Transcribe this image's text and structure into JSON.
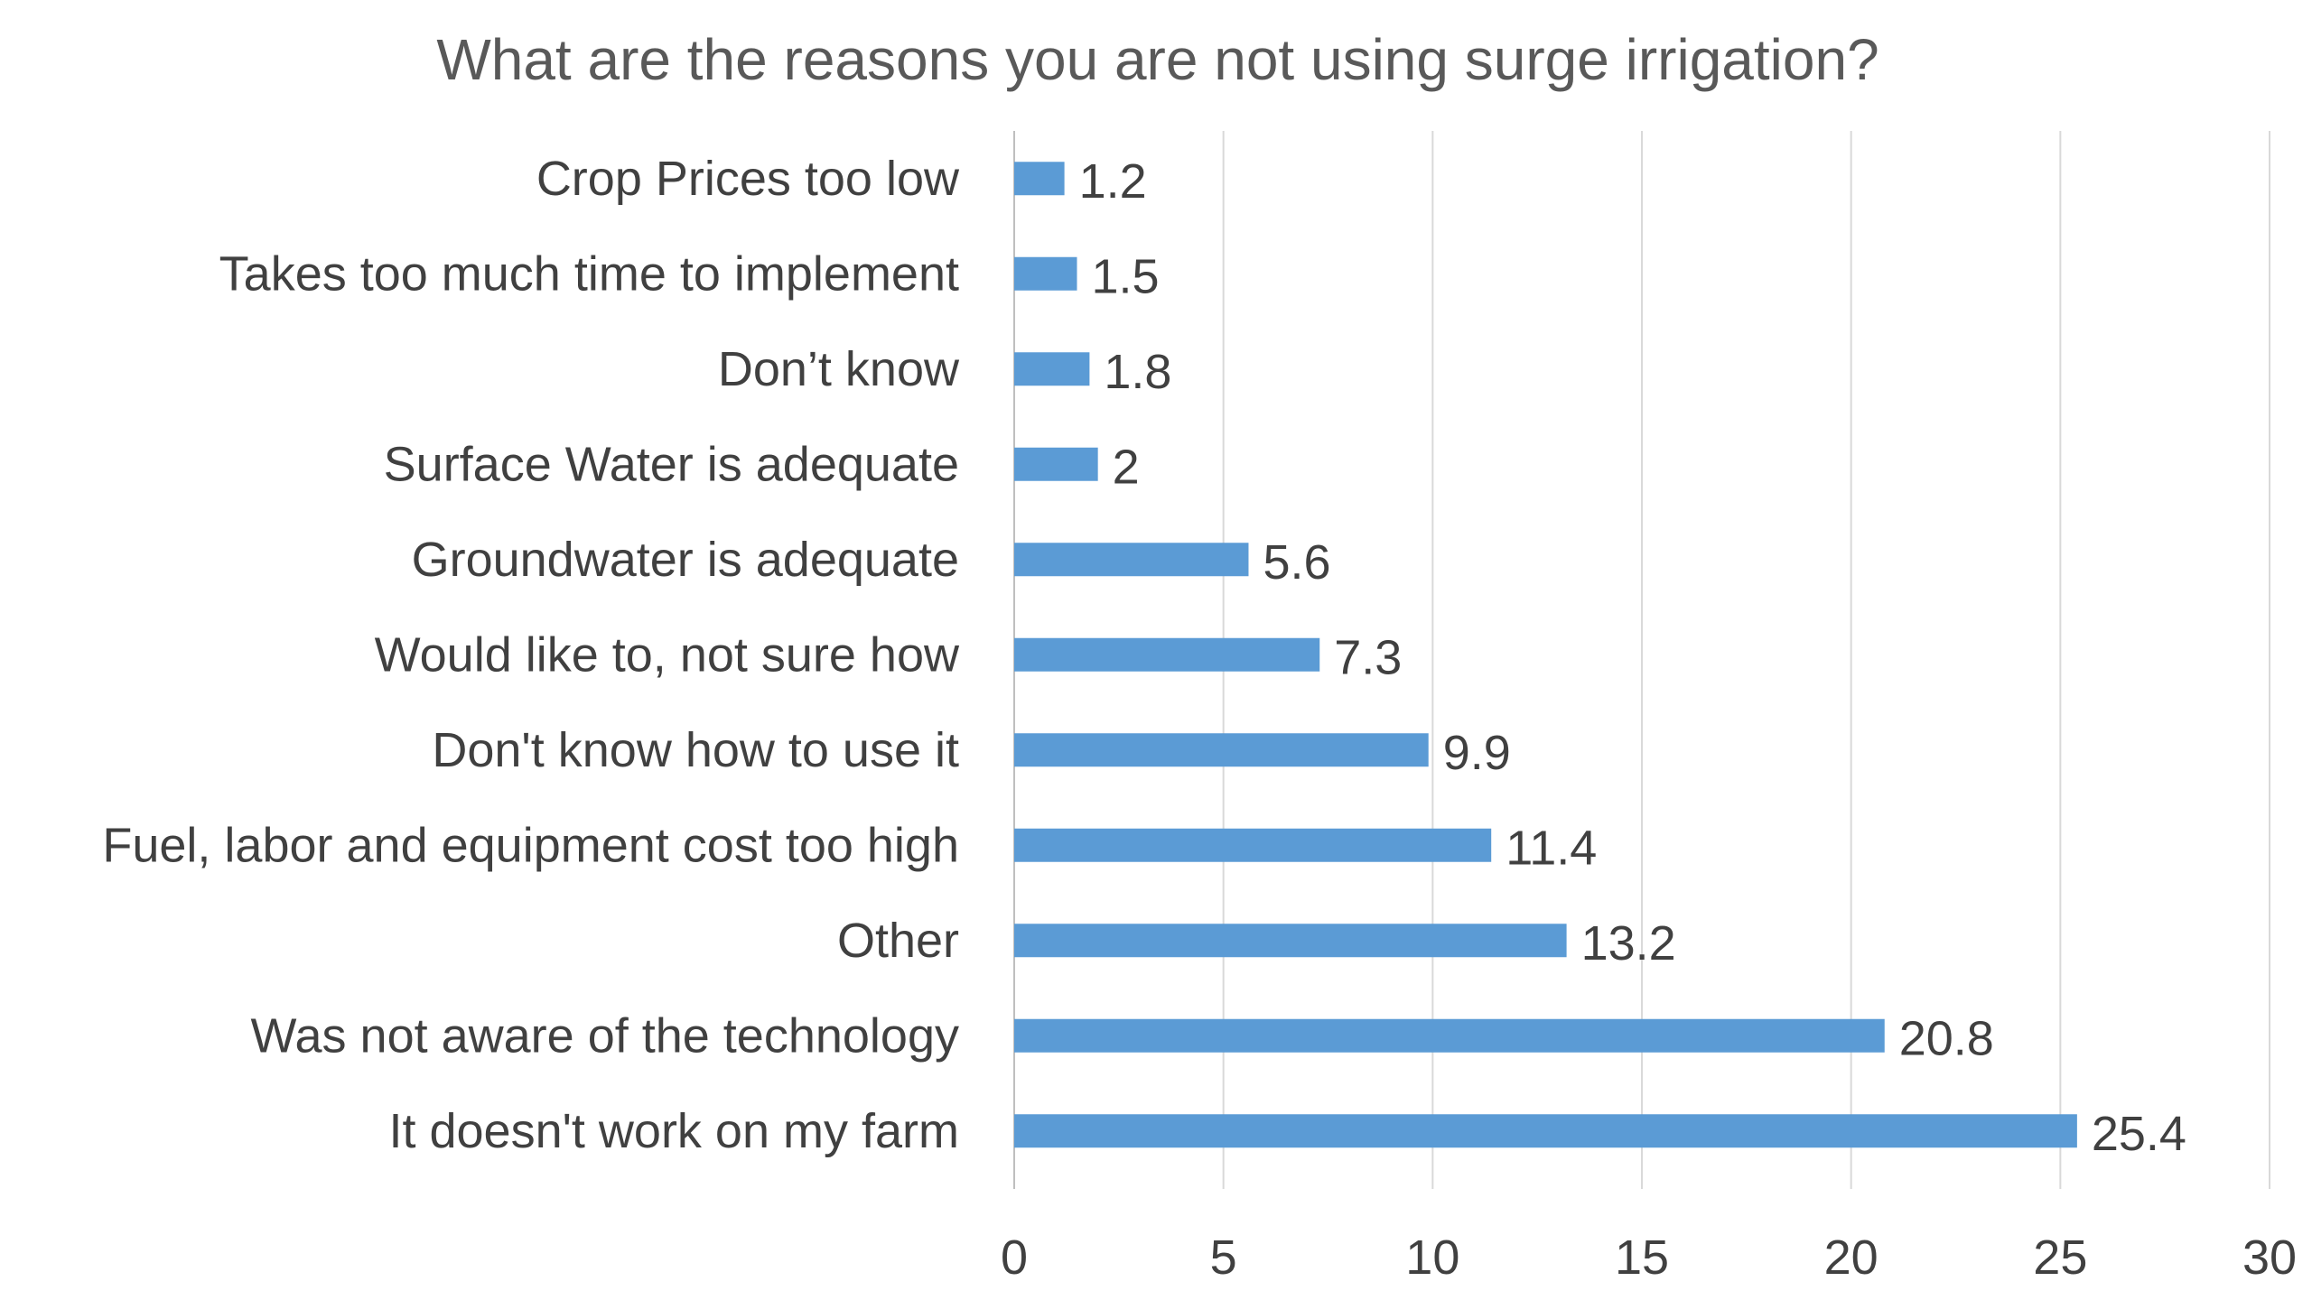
{
  "chart_data": {
    "type": "bar",
    "orientation": "horizontal",
    "title": "What are the reasons you are not using surge irrigation?",
    "categories": [
      "Crop Prices too low",
      "Takes too much time to implement",
      "Don’t know",
      "Surface Water is adequate",
      "Groundwater is adequate",
      "Would like to, not sure how",
      "Don't know how to use it",
      "Fuel, labor and equipment cost too high",
      "Other",
      "Was not aware of the technology",
      "It doesn't work on my farm"
    ],
    "values": [
      1.2,
      1.5,
      1.8,
      2,
      5.6,
      7.3,
      9.9,
      11.4,
      13.2,
      20.8,
      25.4
    ],
    "data_labels": [
      "1.2",
      "1.5",
      "1.8",
      "2",
      "5.6",
      "7.3",
      "9.9",
      "11.4",
      "13.2",
      "20.8",
      "25.4"
    ],
    "xlim": [
      0,
      30
    ],
    "xticks": [
      0,
      5,
      10,
      15,
      20,
      25,
      30
    ],
    "xlabel": "",
    "ylabel": "",
    "grid": "vertical",
    "legend": "none",
    "bar_color": "#5b9bd5"
  }
}
